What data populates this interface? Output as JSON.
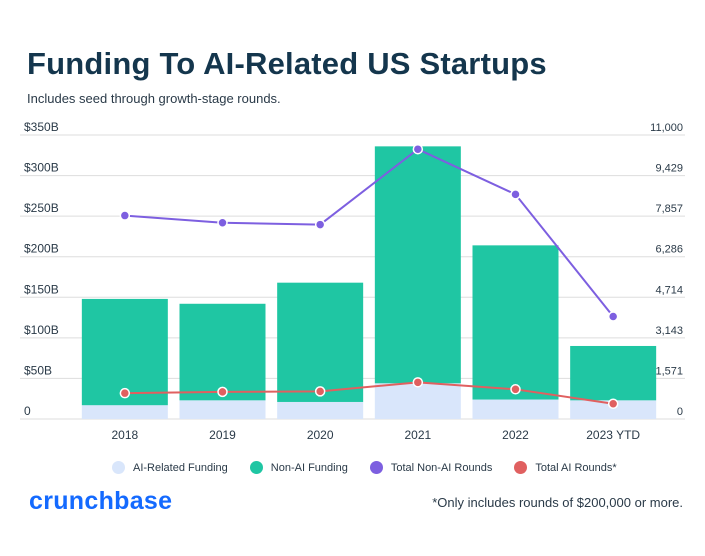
{
  "header": {
    "title": "Funding To AI-Related US Startups",
    "subtitle": "Includes seed through growth-stage rounds."
  },
  "footer": {
    "logo": "crunchbase",
    "footnote": "*Only includes rounds of $200,000 or more."
  },
  "colors": {
    "ai_funding": "#d9e6fb",
    "non_ai_funding": "#1fc6a3",
    "non_ai_rounds": "#7d5fe0",
    "ai_rounds": "#e06060",
    "grid": "#dddddd",
    "text": "#2a3a48"
  },
  "chart_data": {
    "type": "bar",
    "stacked": true,
    "categories": [
      "2018",
      "2019",
      "2020",
      "2021",
      "2022",
      "2023 YTD"
    ],
    "series": [
      {
        "name": "AI-Related Funding",
        "type": "bar",
        "axis": "left",
        "values": [
          17,
          23,
          21,
          44,
          24,
          23
        ]
      },
      {
        "name": "Non-AI Funding",
        "type": "bar",
        "axis": "left",
        "values": [
          131,
          119,
          147,
          292,
          190,
          67
        ]
      },
      {
        "name": "Total Non-AI Rounds",
        "type": "line",
        "axis": "right",
        "values": [
          7880,
          7600,
          7530,
          10450,
          8700,
          3970
        ]
      },
      {
        "name": "Total AI Rounds*",
        "type": "line",
        "axis": "right",
        "values": [
          1000,
          1050,
          1070,
          1420,
          1150,
          590
        ]
      }
    ],
    "y_left": {
      "ticks": [
        "0",
        "$50B",
        "$100B",
        "$150B",
        "$200B",
        "$250B",
        "$300B",
        "$350B"
      ],
      "range": [
        0,
        350
      ]
    },
    "y_right": {
      "ticks": [
        "0",
        "1,571",
        "3,143",
        "4,714",
        "6,286",
        "7,857",
        "9,429",
        "11,000"
      ],
      "range": [
        0,
        11000
      ]
    },
    "grid": true,
    "legend_position": "bottom"
  }
}
